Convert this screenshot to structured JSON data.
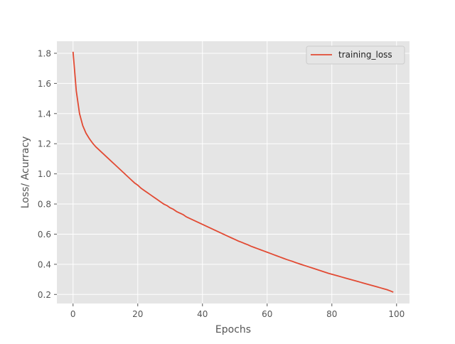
{
  "chart_data": {
    "type": "line",
    "title": "",
    "xlabel": "Epochs",
    "ylabel": "Loss/ Acurracy",
    "xlim": [
      -5,
      104
    ],
    "ylim": [
      0.14,
      1.88
    ],
    "xticks": [
      0,
      20,
      40,
      60,
      80,
      100
    ],
    "yticks": [
      0.2,
      0.4,
      0.6,
      0.8,
      1.0,
      1.2,
      1.4,
      1.6,
      1.8
    ],
    "xtick_labels": [
      "0",
      "20",
      "40",
      "60",
      "80",
      "100"
    ],
    "ytick_labels": [
      "0.2",
      "0.4",
      "0.6",
      "0.8",
      "1.0",
      "1.2",
      "1.4",
      "1.6",
      "1.8"
    ],
    "grid": true,
    "legend_position": "top-right",
    "series": [
      {
        "name": "training_loss",
        "color": "#E24A33",
        "x": [
          0,
          1,
          2,
          3,
          4,
          5,
          6,
          7,
          8,
          9,
          10,
          11,
          12,
          13,
          14,
          15,
          16,
          17,
          18,
          19,
          20,
          21,
          22,
          23,
          24,
          25,
          26,
          27,
          28,
          29,
          30,
          31,
          32,
          33,
          34,
          35,
          36,
          37,
          38,
          39,
          40,
          41,
          42,
          43,
          44,
          45,
          46,
          47,
          48,
          49,
          50,
          51,
          52,
          53,
          54,
          55,
          56,
          57,
          58,
          59,
          60,
          61,
          62,
          63,
          64,
          65,
          66,
          67,
          68,
          69,
          70,
          71,
          72,
          73,
          74,
          75,
          76,
          77,
          78,
          79,
          80,
          81,
          82,
          83,
          84,
          85,
          86,
          87,
          88,
          89,
          90,
          91,
          92,
          93,
          94,
          95,
          96,
          97,
          98,
          99
        ],
        "values": [
          1.81,
          1.55,
          1.4,
          1.32,
          1.27,
          1.235,
          1.205,
          1.18,
          1.16,
          1.14,
          1.12,
          1.1,
          1.08,
          1.06,
          1.04,
          1.02,
          1.0,
          0.98,
          0.96,
          0.94,
          0.925,
          0.905,
          0.89,
          0.875,
          0.86,
          0.845,
          0.83,
          0.815,
          0.8,
          0.79,
          0.775,
          0.765,
          0.75,
          0.74,
          0.73,
          0.715,
          0.705,
          0.695,
          0.685,
          0.675,
          0.665,
          0.655,
          0.645,
          0.635,
          0.625,
          0.615,
          0.605,
          0.595,
          0.585,
          0.575,
          0.565,
          0.555,
          0.547,
          0.538,
          0.53,
          0.52,
          0.512,
          0.504,
          0.496,
          0.488,
          0.48,
          0.472,
          0.464,
          0.456,
          0.448,
          0.44,
          0.432,
          0.425,
          0.418,
          0.41,
          0.403,
          0.396,
          0.389,
          0.382,
          0.375,
          0.368,
          0.361,
          0.354,
          0.347,
          0.34,
          0.334,
          0.328,
          0.322,
          0.316,
          0.31,
          0.304,
          0.298,
          0.292,
          0.286,
          0.28,
          0.274,
          0.268,
          0.262,
          0.256,
          0.25,
          0.244,
          0.238,
          0.232,
          0.224,
          0.215
        ]
      }
    ]
  }
}
